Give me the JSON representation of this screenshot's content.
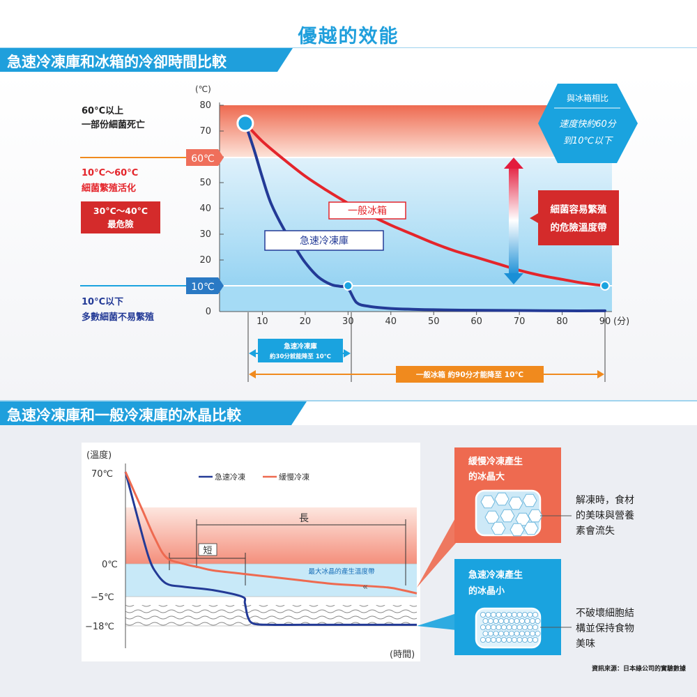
{
  "page_title": "優越的效能",
  "section1": {
    "title": "急速冷凍庫和冰箱的冷卻時間比較",
    "unit_label": "(℃)",
    "side_labels": {
      "zone_high_1": "60°C以上",
      "zone_high_2": "一部份細菌死亡",
      "zone_mid_1": "10°C～60°C",
      "zone_mid_2": "細菌繁殖活化",
      "danger_1": "30°C～40°C",
      "danger_2": "最危險",
      "zone_low_1": "10°C以下",
      "zone_low_2": "多數細菌不易繁殖"
    },
    "marker_60": "60℃",
    "marker_10": "10℃",
    "compare_badge": {
      "line1": "與冰箱相比",
      "line2": "速度快約60分",
      "line3": "到10℃以下"
    },
    "danger_box": {
      "line1": "細菌容易繁殖",
      "line2": "的危險溫度帶"
    },
    "series_label_fridge": "一般冰箱",
    "series_label_freezer": "急速冷凍庫",
    "arrow_freezer_1": "急速冷凍庫",
    "arrow_freezer_2": "約30分就能降至 10℃",
    "arrow_fridge": "一般冰箱 約90分才能降至 10℃",
    "colors": {
      "fridge": "#e4252b",
      "freezer": "#233a96",
      "accent": "#1aa3df",
      "orange": "#f08a1e"
    }
  },
  "chart_data": [
    {
      "type": "line",
      "title": "",
      "xlabel": "(分)",
      "ylabel": "(℃)",
      "xlim": [
        0,
        90
      ],
      "ylim": [
        0,
        80
      ],
      "x_ticks": [
        "10",
        "20",
        "30",
        "40",
        "50",
        "60",
        "70",
        "80",
        "90"
      ],
      "y_ticks": [
        "0",
        "10",
        "20",
        "30",
        "40",
        "50",
        "60",
        "70",
        "80"
      ],
      "series": [
        {
          "name": "一般冰箱",
          "x": [
            6,
            10,
            15,
            20,
            25,
            30,
            35,
            40,
            45,
            50,
            55,
            60,
            65,
            70,
            75,
            80,
            85,
            90
          ],
          "y": [
            73,
            66,
            59,
            52.5,
            47,
            42,
            37.5,
            33.5,
            30,
            26.5,
            23.5,
            21,
            18.5,
            16,
            14,
            12.5,
            11,
            10
          ]
        },
        {
          "name": "急速冷凍庫",
          "x": [
            6,
            8,
            10,
            12,
            15,
            18,
            20,
            23,
            26,
            28,
            30,
            32,
            35,
            40,
            45,
            50,
            60,
            70,
            80,
            90
          ],
          "y": [
            73,
            63,
            52,
            42,
            32,
            24,
            19,
            13.5,
            10.5,
            9.8,
            9,
            3.5,
            2,
            1.2,
            0.9,
            0.7,
            0.5,
            0.4,
            0.3,
            0.3
          ]
        }
      ]
    },
    {
      "type": "line",
      "title": "",
      "xlabel": "(時間)",
      "ylabel": "(溫度)",
      "y_ticks": [
        "70℃",
        "0℃",
        "−5℃",
        "−18℃"
      ],
      "legend": [
        "急速冷凍",
        "緩慢冷凍"
      ],
      "series": [
        {
          "name": "急速冷凍",
          "x": [
            0,
            3,
            6,
            8,
            10,
            14,
            20,
            30,
            40,
            41,
            42,
            44,
            50,
            60,
            70,
            80,
            100
          ],
          "y": [
            70,
            45,
            20,
            5,
            -1,
            -3,
            -3.5,
            -4,
            -5,
            -8,
            -14,
            -17,
            -17.5,
            -17.5,
            -17.5,
            -17.5,
            -17.5
          ]
        },
        {
          "name": "緩慢冷凍",
          "x": [
            0,
            3,
            6,
            10,
            14,
            20,
            25,
            30,
            40,
            50,
            60,
            70,
            80,
            90,
            95,
            100
          ],
          "y": [
            70,
            55,
            40,
            20,
            5,
            0,
            -0.5,
            -1,
            -1.5,
            -2,
            -2.5,
            -3,
            -3.3,
            -3.6,
            -4,
            -4.5
          ]
        }
      ]
    }
  ],
  "section2": {
    "title": "急速冷凍庫和一般冷凍庫的冰晶比較",
    "y_title": "(溫度)",
    "x_title": "(時間)",
    "y_70": "70℃",
    "y_0": "0℃",
    "y_m5": "−5℃",
    "y_m18": "−18℃",
    "legend_fast": "急速冷凍",
    "legend_slow": "緩慢冷凍",
    "label_long": "長",
    "label_short": "短",
    "band_label": "最大冰晶的產生溫度帶",
    "slow_box_1": "緩慢冷凍產生",
    "slow_box_2": "的冰晶大",
    "fast_box_1": "急速冷凍產生",
    "fast_box_2": "的冰晶小",
    "slow_note_1": "解凍時，食材",
    "slow_note_2": "的美味與營養",
    "slow_note_3": "素會流失",
    "fast_note_1": "不破壞細胞結",
    "fast_note_2": "構並保持食物",
    "fast_note_3": "美味",
    "source": "資訊來源：日本綠公司的實驗數據"
  }
}
